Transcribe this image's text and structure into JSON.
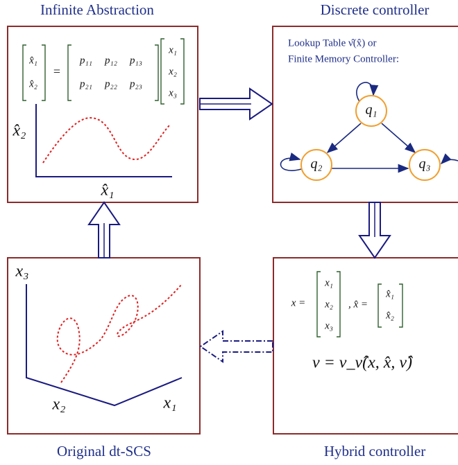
{
  "titles": {
    "abstraction": "Infinite Abstraction",
    "discrete": "Discrete controller",
    "original": "Original dt-SCS",
    "hybrid": "Hybrid controller"
  },
  "abstraction": {
    "lhs": [
      "x̂₁",
      "x̂₂"
    ],
    "equals": "=",
    "matrix": [
      [
        "p₁₁",
        "p₁₂",
        "p₁₃"
      ],
      [
        "p₂₁",
        "p₂₂",
        "p₂₃"
      ]
    ],
    "rhs": [
      "x₁",
      "x₂",
      "x₃"
    ],
    "y_label": "x̂₂",
    "x_label": "x̂₁"
  },
  "discrete": {
    "lines": [
      "Lookup Table ν̂(x̂) or",
      "Finite Memory Controller:"
    ],
    "nodes": [
      {
        "label": "q₁"
      },
      {
        "label": "q₂"
      },
      {
        "label": "q₃"
      }
    ]
  },
  "hybrid": {
    "x_prefix": "x =",
    "x_vector": [
      "x₁",
      "x₂",
      "x₃"
    ],
    "xhat_prefix": ", x̂ =",
    "xhat_vector": [
      "x̂₁",
      "x̂₂"
    ],
    "equation": "ν = ν_ν̂(x, x̂, ν̂)"
  },
  "original": {
    "z_label": "x₃",
    "y_label": "x₂",
    "x_label": "x₁"
  }
}
